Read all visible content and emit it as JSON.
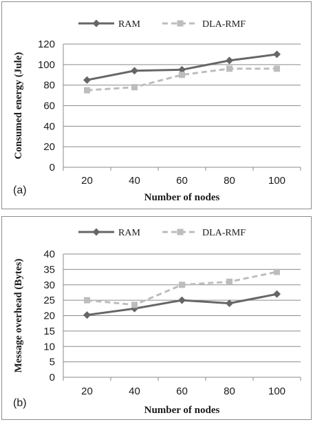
{
  "colors": {
    "ram": "#666666",
    "dla": "#bdbdbd",
    "gridline": "#8a8a8a",
    "axis": "#8a8a8a"
  },
  "chart_data": [
    {
      "type": "line",
      "panel_label": "(a)",
      "xlabel": "Number of nodes",
      "ylabel": "Consumed energy (Jule)",
      "categories": [
        "20",
        "40",
        "60",
        "80",
        "100"
      ],
      "ylim": [
        0,
        120
      ],
      "yticks": [
        0,
        20,
        40,
        60,
        80,
        100,
        120
      ],
      "grid": "horizontal",
      "legend_position": "top",
      "series": [
        {
          "name": "RAM",
          "values": [
            85,
            94,
            95,
            104,
            110
          ],
          "marker": "diamond",
          "style": "solid",
          "color": "#666666"
        },
        {
          "name": "DLA-RMF",
          "values": [
            75,
            78,
            90,
            96,
            96
          ],
          "marker": "square",
          "style": "dashed",
          "color": "#bdbdbd"
        }
      ]
    },
    {
      "type": "line",
      "panel_label": "(b)",
      "xlabel": "Number of nodes",
      "ylabel": "Message overhead (Bytes)",
      "categories": [
        "20",
        "40",
        "60",
        "80",
        "100"
      ],
      "ylim": [
        0,
        40
      ],
      "yticks": [
        0,
        5,
        10,
        15,
        20,
        25,
        30,
        35,
        40
      ],
      "grid": "horizontal",
      "legend_position": "top",
      "series": [
        {
          "name": "RAM",
          "values": [
            20.2,
            22.3,
            25,
            24,
            27
          ],
          "marker": "diamond",
          "style": "solid",
          "color": "#666666"
        },
        {
          "name": "DLA-RMF",
          "values": [
            25,
            23.5,
            30,
            31,
            34.2
          ],
          "marker": "square",
          "style": "dashed",
          "color": "#bdbdbd"
        }
      ]
    }
  ]
}
